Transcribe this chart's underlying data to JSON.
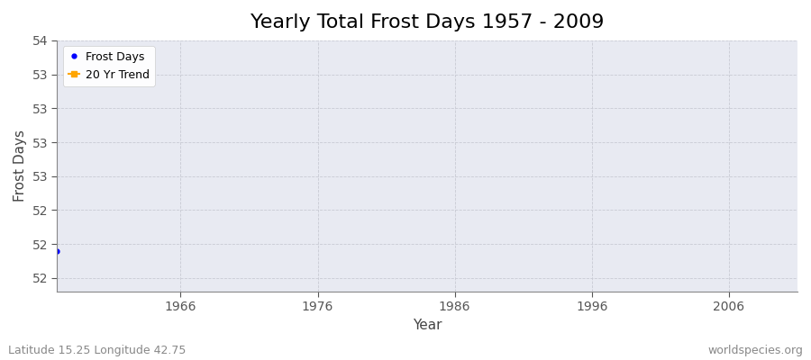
{
  "title": "Yearly Total Frost Days 1957 - 2009",
  "xlabel": "Year",
  "ylabel": "Frost Days",
  "xlim": [
    1957,
    2011
  ],
  "ylim": [
    51.75,
    53.55
  ],
  "xticks": [
    1966,
    1976,
    1986,
    1996,
    2006
  ],
  "ytick_vals": [
    51.85,
    52.1,
    52.35,
    52.6,
    52.85,
    53.1,
    53.35,
    53.6
  ],
  "data_x": [
    1957
  ],
  "data_y": [
    52.05
  ],
  "data_color": "#0000ff",
  "trend_color": "#ffa500",
  "legend_labels": [
    "Frost Days",
    "20 Yr Trend"
  ],
  "plot_bg_color": "#e8eaf2",
  "fig_bg_color": "#ffffff",
  "grid_color": "#c8cad4",
  "subtitle_left": "Latitude 15.25 Longitude 42.75",
  "subtitle_right": "worldspecies.org",
  "title_fontsize": 16,
  "axis_label_fontsize": 11,
  "tick_fontsize": 10,
  "subtitle_fontsize": 9
}
